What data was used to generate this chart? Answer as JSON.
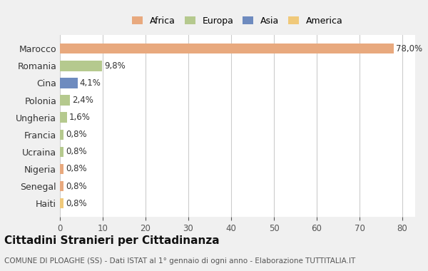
{
  "countries": [
    "Marocco",
    "Romania",
    "Cina",
    "Polonia",
    "Ungheria",
    "Francia",
    "Ucraina",
    "Nigeria",
    "Senegal",
    "Haiti"
  ],
  "values": [
    78.0,
    9.8,
    4.1,
    2.4,
    1.6,
    0.8,
    0.8,
    0.8,
    0.8,
    0.8
  ],
  "labels": [
    "78,0%",
    "9,8%",
    "4,1%",
    "2,4%",
    "1,6%",
    "0,8%",
    "0,8%",
    "0,8%",
    "0,8%",
    "0,8%"
  ],
  "colors": [
    "#E8A97E",
    "#B5C98E",
    "#6E8BBF",
    "#B5C98E",
    "#B5C98E",
    "#B5C98E",
    "#B5C98E",
    "#E8A97E",
    "#E8A97E",
    "#F0C97A"
  ],
  "legend_labels": [
    "Africa",
    "Europa",
    "Asia",
    "America"
  ],
  "legend_colors": [
    "#E8A97E",
    "#B5C98E",
    "#6E8BBF",
    "#F0C97A"
  ],
  "title": "Cittadini Stranieri per Cittadinanza",
  "subtitle": "COMUNE DI PLOAGHE (SS) - Dati ISTAT al 1° gennaio di ogni anno - Elaborazione TUTTITALIA.IT",
  "xlim": [
    0,
    83
  ],
  "xticks": [
    0,
    10,
    20,
    30,
    40,
    50,
    60,
    70,
    80
  ],
  "background_color": "#f0f0f0",
  "bar_background": "#ffffff"
}
